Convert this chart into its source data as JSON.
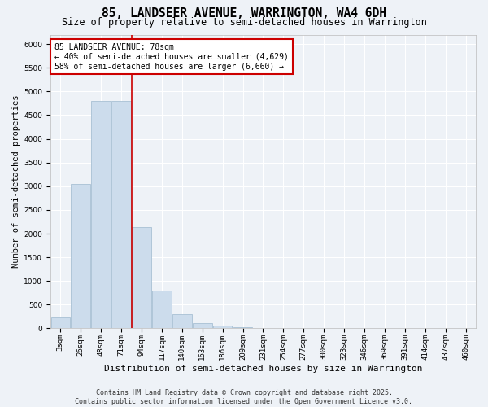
{
  "title": "85, LANDSEER AVENUE, WARRINGTON, WA4 6DH",
  "subtitle": "Size of property relative to semi-detached houses in Warrington",
  "xlabel": "Distribution of semi-detached houses by size in Warrington",
  "ylabel": "Number of semi-detached properties",
  "bar_color": "#ccdcec",
  "bar_edgecolor": "#a8c0d4",
  "bar_linewidth": 0.6,
  "categories": [
    "3sqm",
    "26sqm",
    "48sqm",
    "71sqm",
    "94sqm",
    "117sqm",
    "140sqm",
    "163sqm",
    "186sqm",
    "209sqm",
    "231sqm",
    "254sqm",
    "277sqm",
    "300sqm",
    "323sqm",
    "346sqm",
    "369sqm",
    "391sqm",
    "414sqm",
    "437sqm",
    "460sqm"
  ],
  "values": [
    230,
    3050,
    4800,
    4800,
    2130,
    790,
    300,
    115,
    65,
    30,
    15,
    5,
    2,
    0,
    0,
    0,
    0,
    0,
    0,
    0,
    0
  ],
  "ylim": [
    0,
    6200
  ],
  "yticks": [
    0,
    500,
    1000,
    1500,
    2000,
    2500,
    3000,
    3500,
    4000,
    4500,
    5000,
    5500,
    6000
  ],
  "property_line_x": 3.5,
  "property_line_color": "#cc0000",
  "annotation_line1": "85 LANDSEER AVENUE: 78sqm",
  "annotation_line2": "← 40% of semi-detached houses are smaller (4,629)",
  "annotation_line3": "58% of semi-detached houses are larger (6,660) →",
  "annotation_box_color": "#ffffff",
  "annotation_box_edgecolor": "#cc0000",
  "footer": "Contains HM Land Registry data © Crown copyright and database right 2025.\nContains public sector information licensed under the Open Government Licence v3.0.",
  "background_color": "#eef2f7",
  "grid_color": "#ffffff",
  "title_fontsize": 10.5,
  "subtitle_fontsize": 8.5,
  "xlabel_fontsize": 8,
  "ylabel_fontsize": 7.5,
  "tick_fontsize": 6.5,
  "annotation_fontsize": 7,
  "footer_fontsize": 6
}
